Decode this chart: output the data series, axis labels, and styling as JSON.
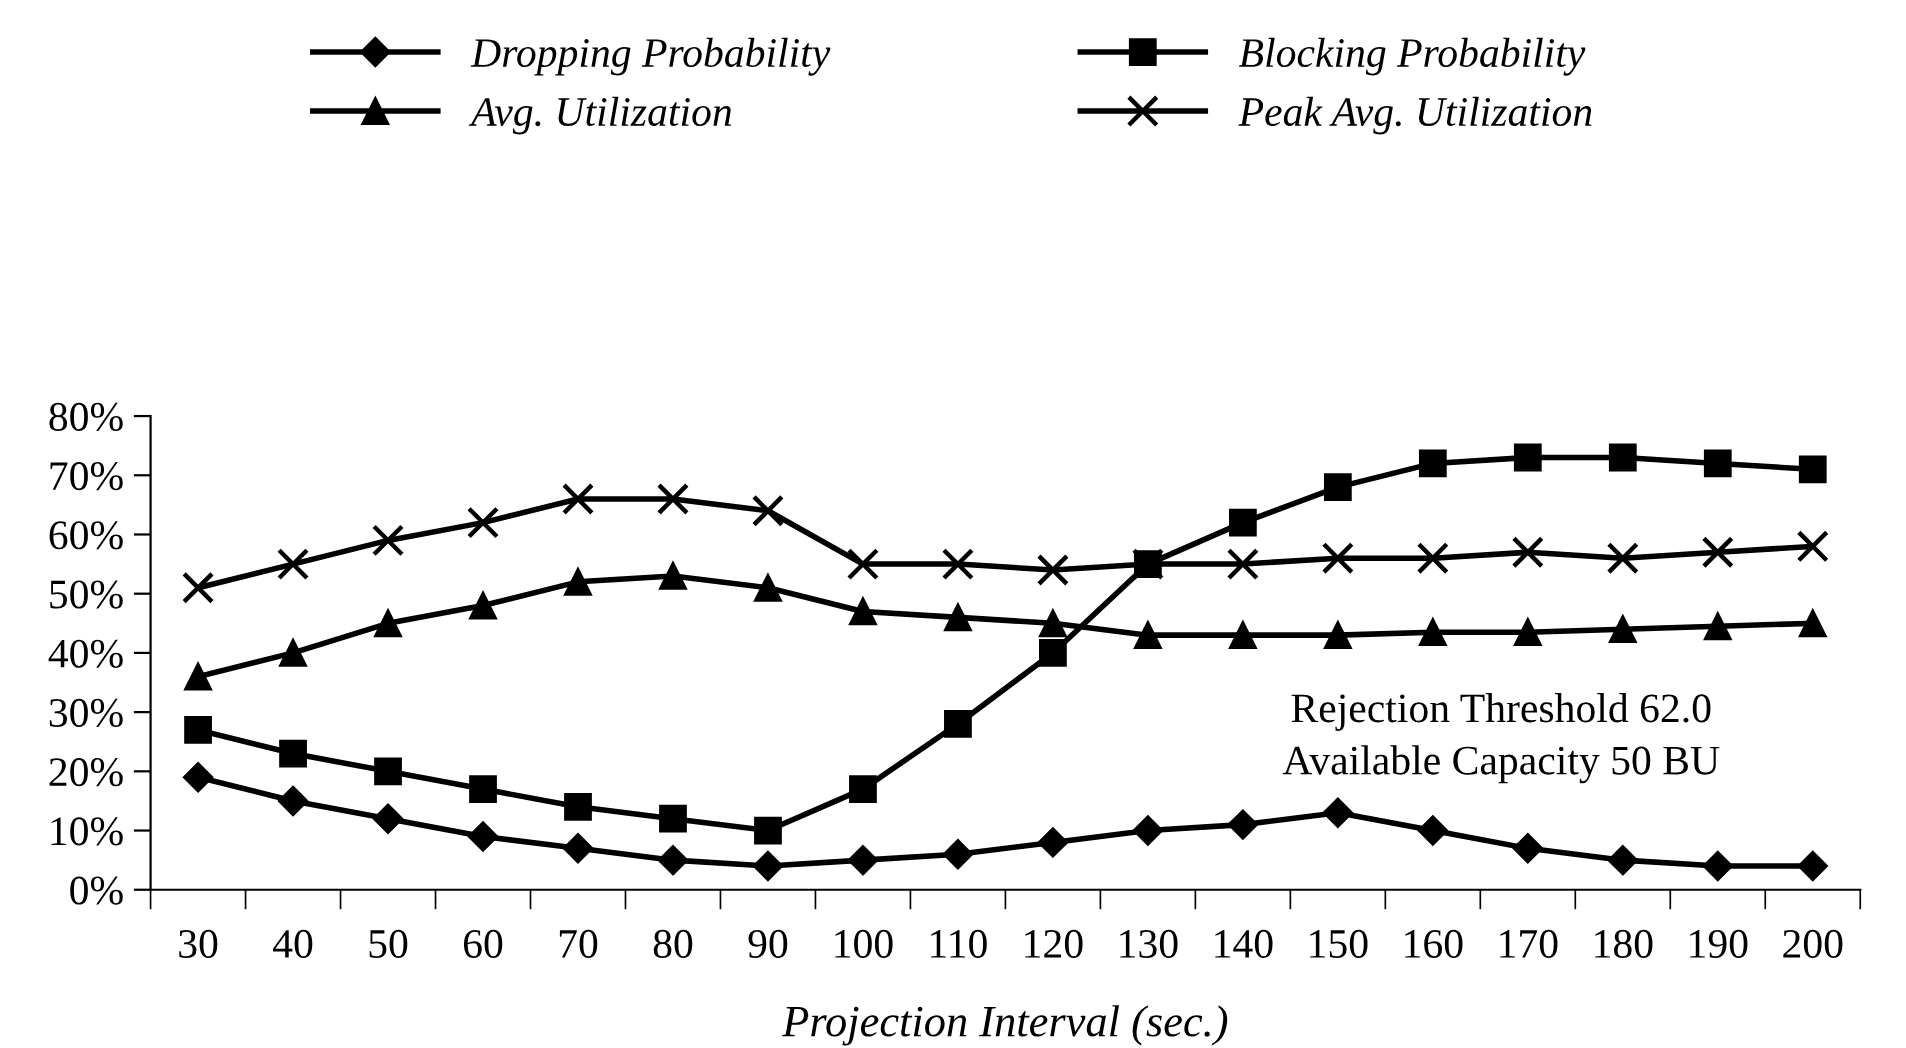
{
  "chart_data": {
    "type": "line",
    "xlabel": "Projection Interval (sec.)",
    "categories": [
      "30",
      "40",
      "50",
      "60",
      "70",
      "80",
      "90",
      "100",
      "110",
      "120",
      "130",
      "140",
      "150",
      "160",
      "170",
      "180",
      "190",
      "200"
    ],
    "series": [
      {
        "name": "Dropping Probability",
        "color": "#000000",
        "marker": "diamond",
        "values": [
          19,
          15,
          12,
          9,
          7,
          5,
          4,
          5,
          6,
          8,
          10,
          11,
          13,
          10,
          7,
          5,
          4,
          4
        ]
      },
      {
        "name": "Blocking Probability",
        "color": "#000000",
        "marker": "square",
        "values": [
          27,
          23,
          20,
          17,
          14,
          12,
          10,
          17,
          28,
          40,
          55,
          62,
          68,
          72,
          73,
          73,
          72,
          71
        ]
      },
      {
        "name": "Avg. Utilization",
        "color": "#000000",
        "marker": "triangle",
        "values": [
          36,
          40,
          45,
          48,
          52,
          53,
          51,
          47,
          46,
          45,
          43,
          43,
          43,
          43.5,
          43.5,
          44,
          44.5,
          45
        ]
      },
      {
        "name": "Peak Avg. Utilization",
        "color": "#000000",
        "marker": "cross",
        "values": [
          51,
          55,
          59,
          62,
          66,
          66,
          64,
          55,
          55,
          54,
          55,
          55,
          56,
          56,
          57,
          56,
          57,
          58
        ]
      }
    ],
    "ylim": [
      0,
      80
    ],
    "yticks": [
      {
        "value": 0,
        "label": "0%"
      },
      {
        "value": 10,
        "label": "10%"
      },
      {
        "value": 20,
        "label": "20%"
      },
      {
        "value": 30,
        "label": "30%"
      },
      {
        "value": 40,
        "label": "40%"
      },
      {
        "value": 50,
        "label": "50%"
      },
      {
        "value": 60,
        "label": "60%"
      },
      {
        "value": 70,
        "label": "70%"
      },
      {
        "value": 80,
        "label": "80%"
      }
    ],
    "annotations": [
      "Rejection Threshold 62.0\nAvailable Capacity 50 BU"
    ],
    "legend": "top",
    "grid": false,
    "line_style": "solid"
  }
}
